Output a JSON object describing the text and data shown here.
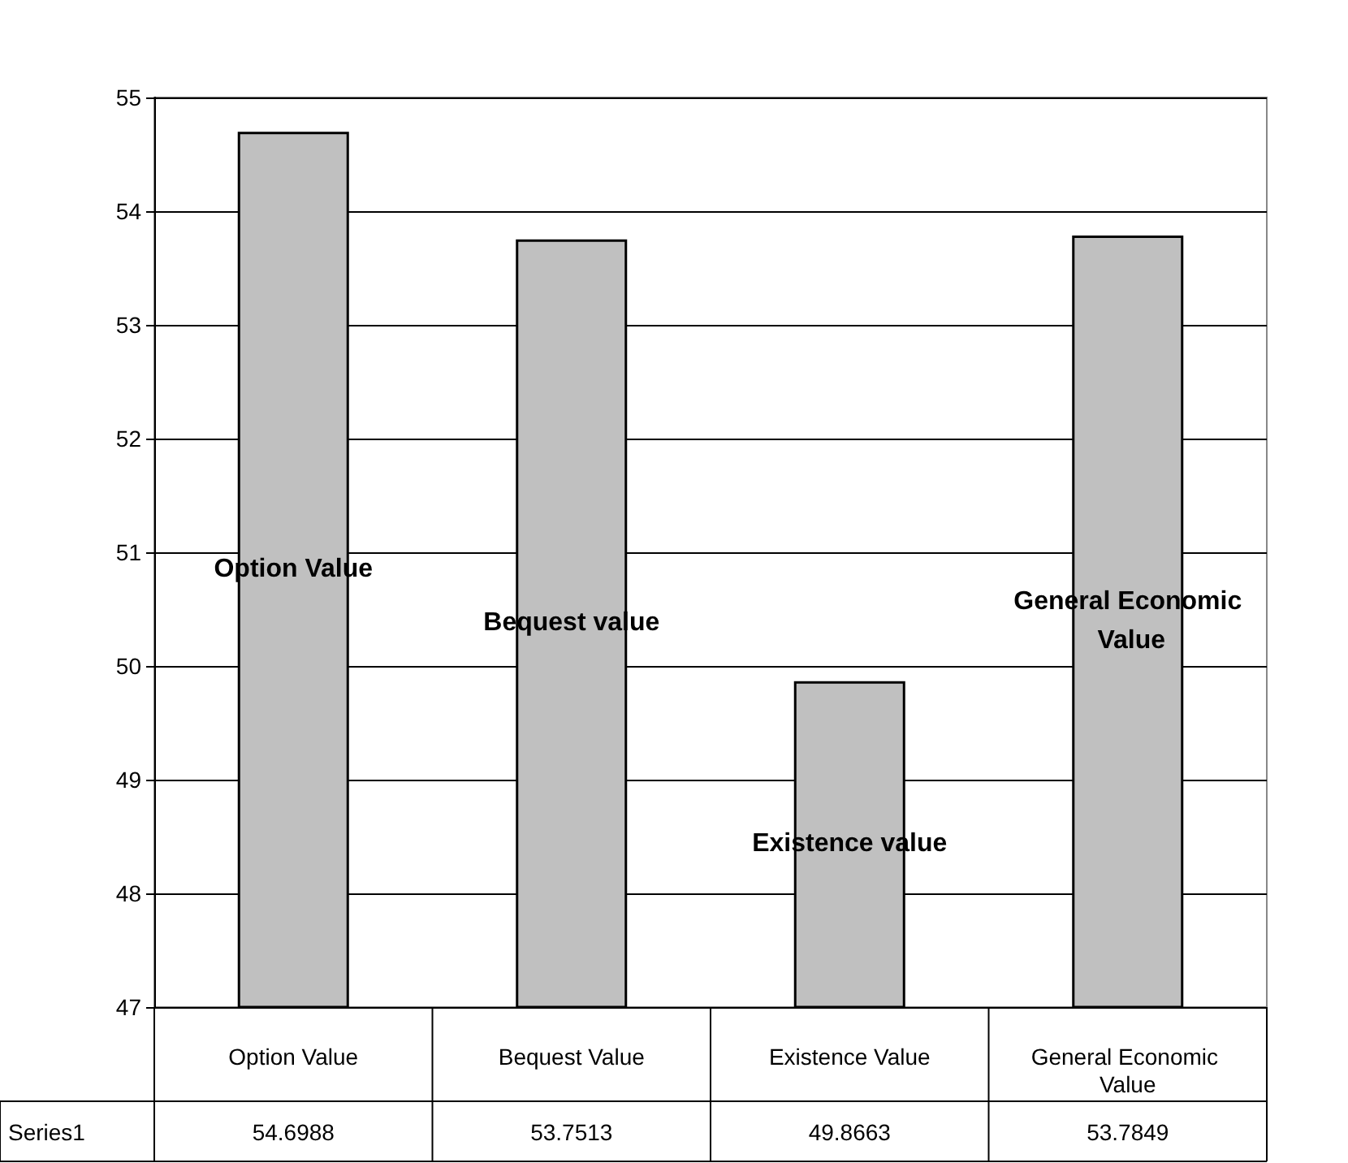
{
  "chart_data": {
    "type": "bar",
    "categories": [
      "Option Value",
      "Bequest Value",
      "Existence Value",
      "General Economic Value"
    ],
    "series": [
      {
        "name": "Series1",
        "color": "#c0c0c0",
        "values": [
          54.6988,
          53.7513,
          49.8663,
          53.7849
        ]
      }
    ],
    "ylim": [
      47,
      55
    ],
    "yticks": [
      47,
      48,
      49,
      50,
      51,
      52,
      53,
      54,
      55
    ],
    "grid": "y",
    "data_labels": true,
    "annotations": [
      "Option Value",
      "Bequest value",
      "Existence value",
      "General Economic Value"
    ]
  }
}
